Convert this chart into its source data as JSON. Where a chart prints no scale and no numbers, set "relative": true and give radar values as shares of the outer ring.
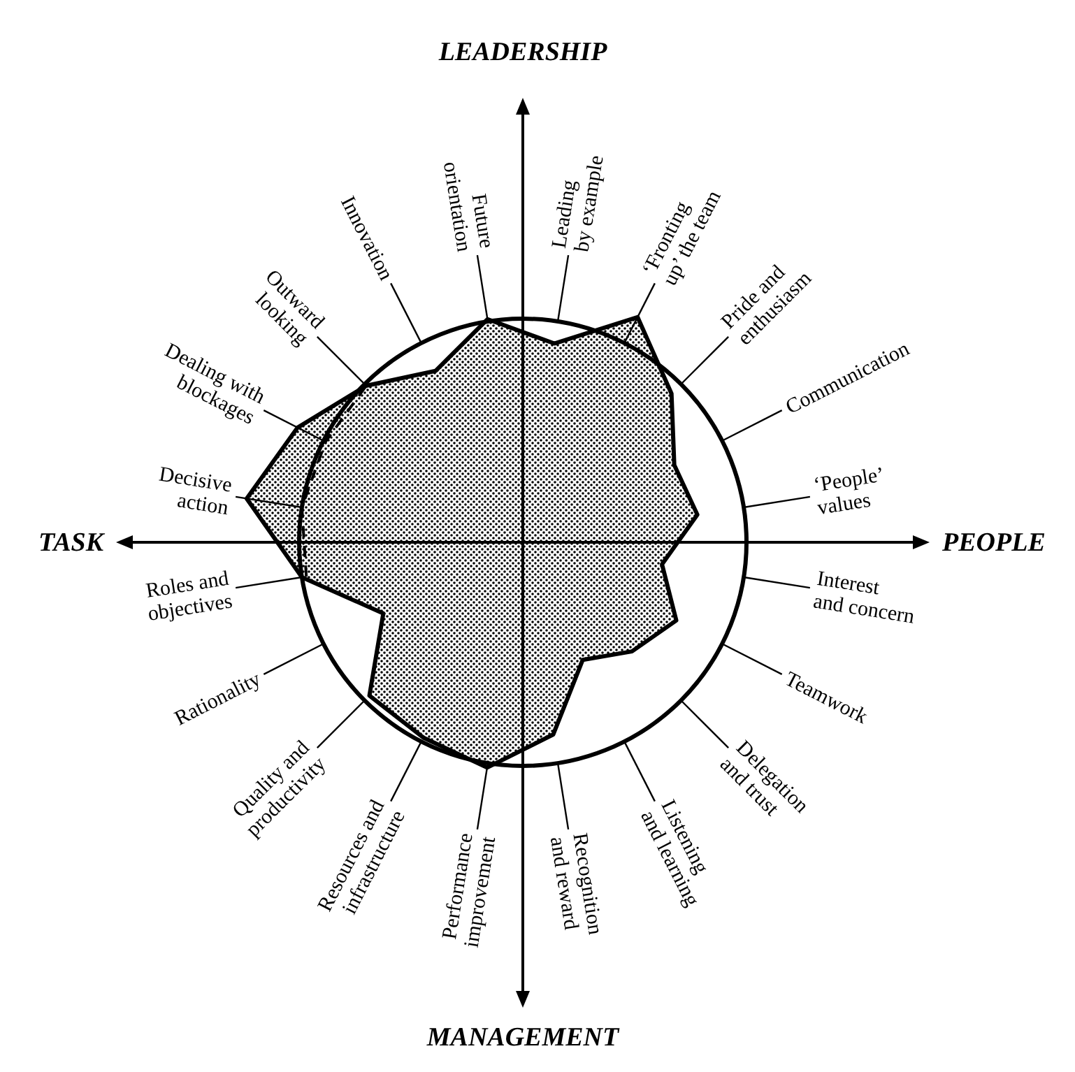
{
  "chart_data": {
    "type": "radar",
    "relative": true,
    "categories": [
      "Leading by example",
      "‘Fronting up’ the team",
      "Pride and enthusiasm",
      "Communication",
      "‘People’ values",
      "Interest and concern",
      "Teamwork",
      "Delegation and trust",
      "Listening and learning",
      "Recognition and reward",
      "Performance improvement",
      "Resources and infrastructure",
      "Quality and productivity",
      "Rationality",
      "Roles and objectives",
      "Decisive action",
      "Dealing with blockages",
      "Outward looking",
      "Innovation",
      "Future orientation"
    ],
    "series": [
      {
        "color": "#000000",
        "line_style": "solid",
        "values": [
          0.9,
          1.13,
          0.94,
          0.76,
          0.79,
          0.63,
          0.77,
          0.69,
          0.59,
          0.87,
          1.02,
          0.98,
          0.97,
          0.7,
          1.0,
          1.25,
          1.13,
          0.99,
          0.86,
          1.01
        ]
      },
      {
        "color": "#000000",
        "line_style": "dashed",
        "values": [
          null,
          null,
          null,
          null,
          null,
          null,
          null,
          null,
          null,
          null,
          null,
          null,
          null,
          null,
          0.98,
          1.0,
          0.99,
          0.99,
          null,
          null
        ]
      }
    ],
    "grid": true,
    "annotations": [
      "LEADERSHIP",
      "PEOPLE",
      "MANAGEMENT",
      "TASK"
    ]
  }
}
